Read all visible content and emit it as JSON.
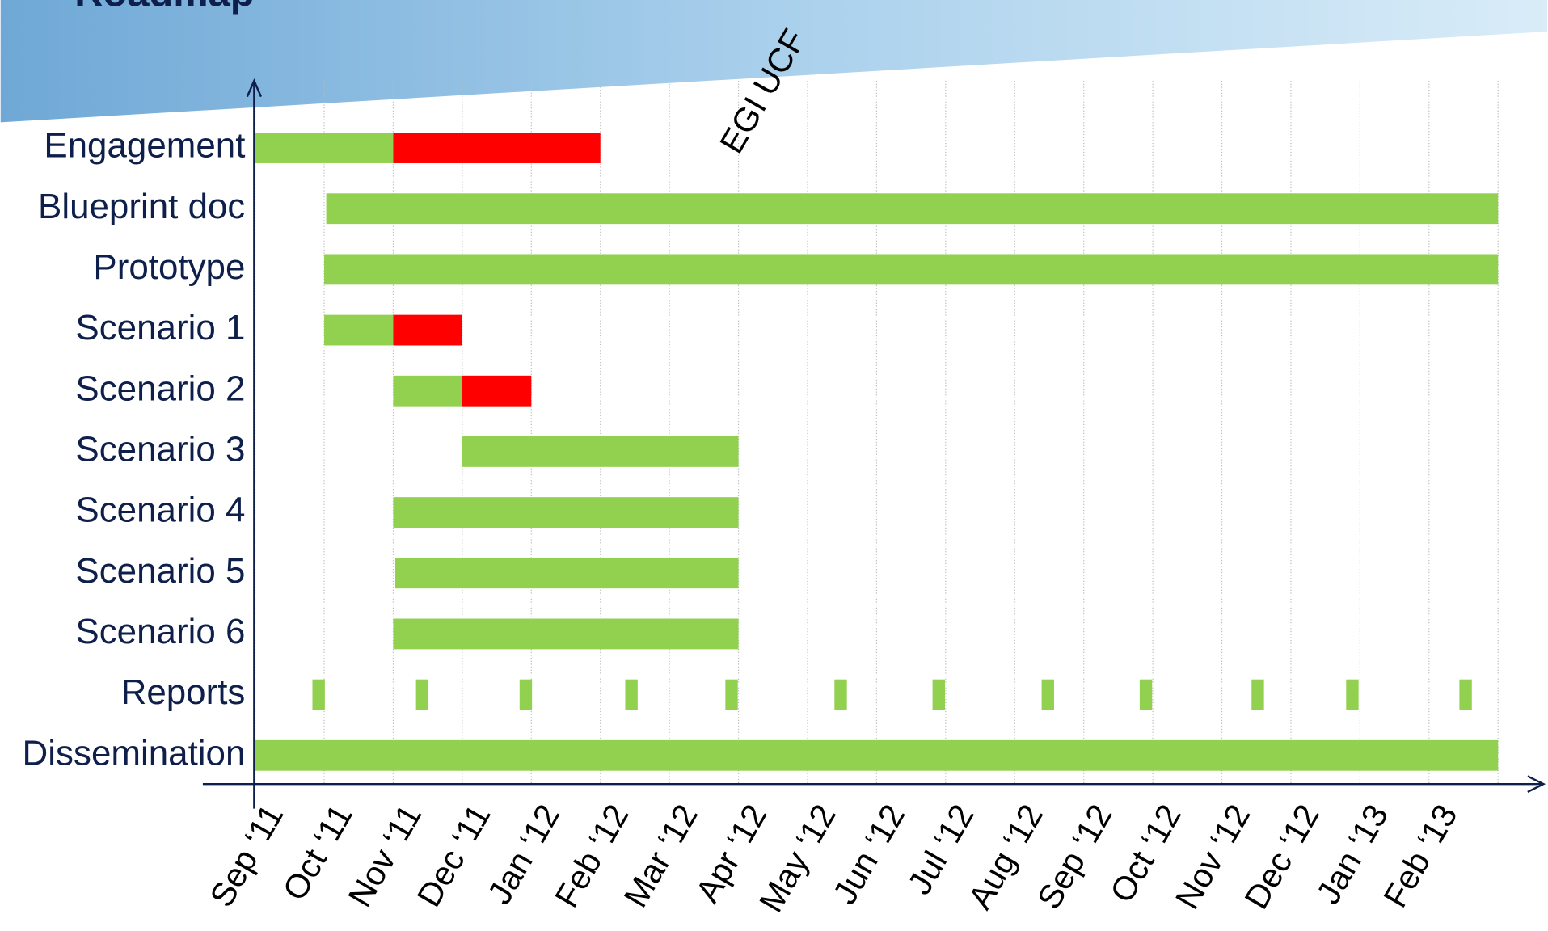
{
  "chart_data": {
    "type": "gantt",
    "title": "Roadmap",
    "annotation": {
      "text": "EGI UCF",
      "x": 7
    },
    "xlim": [
      0,
      18
    ],
    "xticks": [
      {
        "value": 0,
        "label": "Sep ‘11"
      },
      {
        "value": 1,
        "label": "Oct ‘11"
      },
      {
        "value": 2,
        "label": "Nov ‘11"
      },
      {
        "value": 3,
        "label": "Dec ‘11"
      },
      {
        "value": 4,
        "label": "Jan ‘12"
      },
      {
        "value": 5,
        "label": "Feb ‘12"
      },
      {
        "value": 6,
        "label": "Mar ‘12"
      },
      {
        "value": 7,
        "label": "Apr ‘12"
      },
      {
        "value": 8,
        "label": "May ‘12"
      },
      {
        "value": 9,
        "label": "Jun ‘12"
      },
      {
        "value": 10,
        "label": "Jul ‘12"
      },
      {
        "value": 11,
        "label": "Aug ‘12"
      },
      {
        "value": 12,
        "label": "Sep ‘12"
      },
      {
        "value": 13,
        "label": "Oct ‘12"
      },
      {
        "value": 14,
        "label": "Nov ‘12"
      },
      {
        "value": 15,
        "label": "Dec ‘12"
      },
      {
        "value": 16,
        "label": "Jan ‘13"
      },
      {
        "value": 17,
        "label": "Feb ‘13"
      },
      {
        "value": 18,
        "label": ""
      }
    ],
    "grid": true,
    "tasks": [
      {
        "label": "Engagement",
        "segments": [
          {
            "start": 0,
            "end": 2,
            "color": "#92d050"
          },
          {
            "start": 2,
            "end": 5,
            "color": "#ff0000"
          }
        ]
      },
      {
        "label": "Blueprint doc",
        "segments": [
          {
            "start": 1.03,
            "end": 18,
            "color": "#92d050"
          }
        ]
      },
      {
        "label": "Prototype",
        "segments": [
          {
            "start": 1,
            "end": 18,
            "color": "#92d050"
          }
        ]
      },
      {
        "label": "Scenario 1",
        "segments": [
          {
            "start": 1,
            "end": 2,
            "color": "#92d050"
          },
          {
            "start": 2,
            "end": 3,
            "color": "#ff0000"
          }
        ]
      },
      {
        "label": "Scenario 2",
        "segments": [
          {
            "start": 2,
            "end": 3,
            "color": "#92d050"
          },
          {
            "start": 3,
            "end": 4,
            "color": "#ff0000"
          }
        ]
      },
      {
        "label": "Scenario 3",
        "segments": [
          {
            "start": 3,
            "end": 7,
            "color": "#92d050"
          }
        ]
      },
      {
        "label": "Scenario 4",
        "segments": [
          {
            "start": 2,
            "end": 7,
            "color": "#92d050"
          }
        ]
      },
      {
        "label": "Scenario 5",
        "segments": [
          {
            "start": 2.03,
            "end": 7,
            "color": "#92d050"
          }
        ]
      },
      {
        "label": "Scenario 6",
        "segments": [
          {
            "start": 2,
            "end": 7,
            "color": "#92d050"
          }
        ]
      },
      {
        "label": "Reports",
        "segments": [
          {
            "start": 0.83,
            "end": 1.01,
            "color": "#92d050"
          },
          {
            "start": 2.33,
            "end": 2.51,
            "color": "#92d050"
          },
          {
            "start": 3.83,
            "end": 4.01,
            "color": "#92d050"
          },
          {
            "start": 5.36,
            "end": 5.54,
            "color": "#92d050"
          },
          {
            "start": 6.81,
            "end": 6.99,
            "color": "#92d050"
          },
          {
            "start": 8.39,
            "end": 8.57,
            "color": "#92d050"
          },
          {
            "start": 9.81,
            "end": 9.99,
            "color": "#92d050"
          },
          {
            "start": 11.39,
            "end": 11.57,
            "color": "#92d050"
          },
          {
            "start": 12.81,
            "end": 12.99,
            "color": "#92d050"
          },
          {
            "start": 14.43,
            "end": 14.61,
            "color": "#92d050"
          },
          {
            "start": 15.8,
            "end": 15.98,
            "color": "#92d050"
          },
          {
            "start": 17.44,
            "end": 17.62,
            "color": "#92d050"
          }
        ]
      },
      {
        "label": "Dissemination",
        "segments": [
          {
            "start": 0,
            "end": 18,
            "color": "#92d050"
          }
        ]
      }
    ]
  }
}
